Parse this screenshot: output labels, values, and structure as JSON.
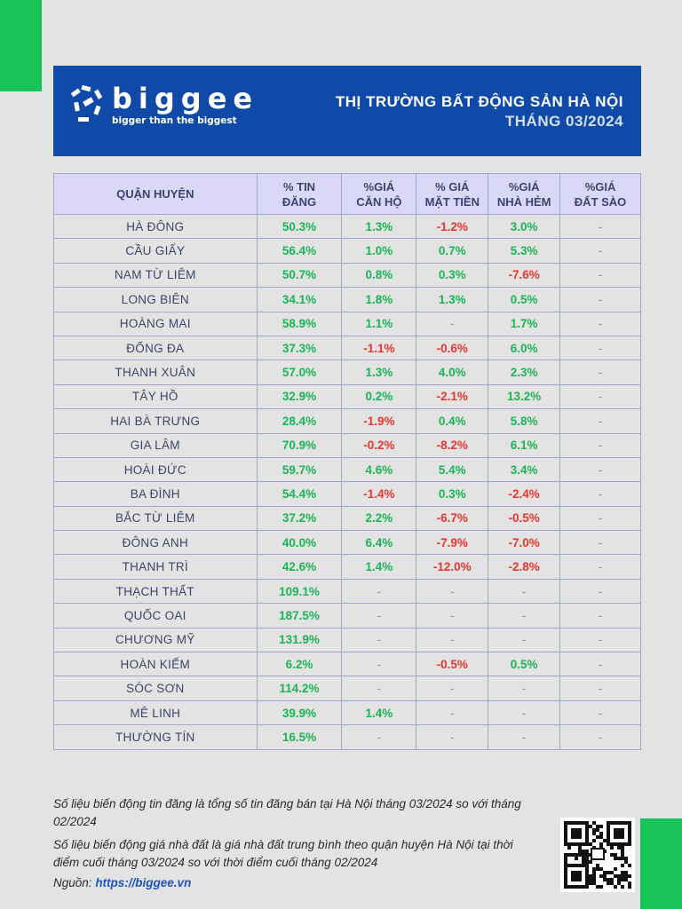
{
  "brand": {
    "name": "biggee",
    "tagline": "bigger than the biggest"
  },
  "banner": {
    "title": "THỊ TRƯỜNG BẤT ĐỘNG SẢN HÀ NỘI",
    "subtitle": "THÁNG 03/2024"
  },
  "colors": {
    "banner": "#0f4aa8",
    "accent_green": "#18c45a",
    "positive": "#1bb555",
    "negative": "#e8362f",
    "header_bg": "#dbd8f7"
  },
  "table": {
    "headers": [
      "QUẬN HUYỆN",
      "% TIN\nĐĂNG",
      "%GIÁ\nCĂN HỘ",
      "% GIÁ\nMẶT TIỀN",
      "%GIÁ\nNHÀ HẺM",
      "%GIÁ\nĐẤT SÀO"
    ],
    "rows": [
      [
        "HÀ ĐÔNG",
        "50.3%",
        "1.3%",
        "-1.2%",
        "3.0%",
        "-"
      ],
      [
        "CẦU GIẤY",
        "56.4%",
        "1.0%",
        "0.7%",
        "5.3%",
        "-"
      ],
      [
        "NAM TỪ LIÊM",
        "50.7%",
        "0.8%",
        "0.3%",
        "-7.6%",
        "-"
      ],
      [
        "LONG BIÊN",
        "34.1%",
        "1.8%",
        "1.3%",
        "0.5%",
        "-"
      ],
      [
        "HOÀNG MAI",
        "58.9%",
        "1.1%",
        "-",
        "1.7%",
        "-"
      ],
      [
        "ĐỐNG ĐA",
        "37.3%",
        "-1.1%",
        "-0.6%",
        "6.0%",
        "-"
      ],
      [
        "THANH XUÂN",
        "57.0%",
        "1.3%",
        "4.0%",
        "2.3%",
        "-"
      ],
      [
        "TÂY HỒ",
        "32.9%",
        "0.2%",
        "-2.1%",
        "13.2%",
        "-"
      ],
      [
        "HAI BÀ TRƯNG",
        "28.4%",
        "-1.9%",
        "0.4%",
        "5.8%",
        "-"
      ],
      [
        "GIA LÂM",
        "70.9%",
        "-0.2%",
        "-8.2%",
        "6.1%",
        "-"
      ],
      [
        "HOÀI ĐỨC",
        "59.7%",
        "4.6%",
        "5.4%",
        "3.4%",
        "-"
      ],
      [
        "BA ĐÌNH",
        "54.4%",
        "-1.4%",
        "0.3%",
        "-2.4%",
        "-"
      ],
      [
        "BẮC TỪ LIÊM",
        "37.2%",
        "2.2%",
        "-6.7%",
        "-0.5%",
        "-"
      ],
      [
        "ĐÔNG ANH",
        "40.0%",
        "6.4%",
        "-7.9%",
        "-7.0%",
        "-"
      ],
      [
        "THANH TRÌ",
        "42.6%",
        "1.4%",
        "-12.0%",
        "-2.8%",
        "-"
      ],
      [
        "THẠCH THẤT",
        "109.1%",
        "-",
        "-",
        "-",
        "-"
      ],
      [
        "QUỐC OAI",
        "187.5%",
        "-",
        "-",
        "-",
        "-"
      ],
      [
        "CHƯƠNG MỸ",
        "131.9%",
        "-",
        "-",
        "-",
        "-"
      ],
      [
        "HOÀN KIẾM",
        "6.2%",
        "-",
        "-0.5%",
        "0.5%",
        "-"
      ],
      [
        "SÓC SƠN",
        "114.2%",
        "-",
        "-",
        "-",
        "-"
      ],
      [
        "MÊ LINH",
        "39.9%",
        "1.4%",
        "-",
        "-",
        "-"
      ],
      [
        "THƯỜNG TÍN",
        "16.5%",
        "-",
        "-",
        "-",
        "-"
      ]
    ]
  },
  "notes": [
    "Số liệu biến động tin đăng là tổng số tin đăng bán tại Hà Nội tháng 03/2024 so với tháng 02/2024",
    "Số liệu biến động giá nhà đất là giá nhà đất trung bình theo quận huyện Hà Nội tại thời điểm cuối tháng 03/2024 so với thời điểm cuối tháng 02/2024"
  ],
  "source": {
    "label": "Nguồn:",
    "link": "https://biggee.vn"
  }
}
